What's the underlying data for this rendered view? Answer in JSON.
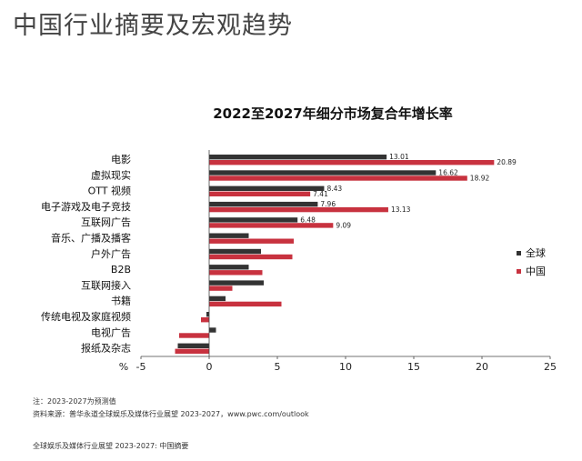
{
  "page": {
    "title": "中国行业摘要及宏观趋势",
    "note": "注：2023-2027为预测值",
    "source": "资料来源：普华永道全球娱乐及媒体行业展望 2023-2027，www.pwc.com/outlook",
    "footer": "全球娱乐及媒体行业展望 2023-2027: 中国摘要"
  },
  "chart_data": {
    "type": "bar",
    "orientation": "horizontal",
    "title": "2022至2027年细分市场复合年增长率",
    "unit": "%",
    "xlim": [
      -5,
      25
    ],
    "xticks": [
      "-5",
      "0",
      "5",
      "10",
      "15",
      "20",
      "25"
    ],
    "grid": false,
    "legend_position": "right",
    "categories": [
      "电影",
      "虚拟现实",
      "OTT 视频",
      "电子游戏及电子竞技",
      "互联网广告",
      "音乐、广播及播客",
      "户外广告",
      "B2B",
      "互联网接入",
      "书籍",
      "传统电视及家庭视频",
      "电视广告",
      "报纸及杂志"
    ],
    "series": [
      {
        "name": "全球",
        "color": "#333333",
        "values": [
          13.01,
          16.62,
          8.43,
          7.96,
          6.48,
          2.9,
          3.8,
          2.9,
          4.0,
          1.2,
          -0.2,
          0.5,
          -2.3
        ],
        "labels": [
          "13.01",
          "16.62",
          "8.43",
          "7.96",
          "6.48",
          "",
          "",
          "",
          "",
          "",
          "",
          "",
          ""
        ]
      },
      {
        "name": "中国",
        "color": "#c8323f",
        "values": [
          20.89,
          18.92,
          7.41,
          13.13,
          9.09,
          6.2,
          6.1,
          3.9,
          1.7,
          5.3,
          -0.6,
          -2.2,
          -2.5
        ],
        "labels": [
          "20.89",
          "18.92",
          "7.41",
          "13.13",
          "9.09",
          "",
          "",
          "",
          "",
          "",
          "",
          "",
          ""
        ]
      }
    ]
  }
}
